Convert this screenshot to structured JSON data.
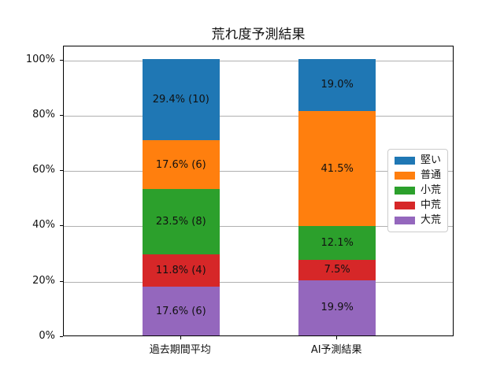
{
  "figure": {
    "background": "#ffffff",
    "text_color": "#111111",
    "grid_color": "#b0b0b0"
  },
  "chart_data": {
    "type": "bar",
    "variant": "stacked-100-percent-vertical",
    "title": "荒れ度予測結果",
    "categories": [
      "過去期間平均",
      "AI予測結果"
    ],
    "xlabel": "",
    "ylabel": "",
    "yticks": [
      "0%",
      "20%",
      "40%",
      "60%",
      "80%",
      "100%"
    ],
    "ylim": [
      0,
      105
    ],
    "grid": true,
    "legend_position": "right-inside",
    "series": [
      {
        "name": "堅い",
        "color": "#1f77b4",
        "values": [
          29.4,
          19.0
        ],
        "labels": [
          "29.4% (10)",
          "19.0%"
        ]
      },
      {
        "name": "普通",
        "color": "#ff7f0e",
        "values": [
          17.6,
          41.5
        ],
        "labels": [
          "17.6% (6)",
          "41.5%"
        ]
      },
      {
        "name": "小荒",
        "color": "#2ca02c",
        "values": [
          23.5,
          12.1
        ],
        "labels": [
          "23.5% (8)",
          "12.1%"
        ]
      },
      {
        "name": "中荒",
        "color": "#d62728",
        "values": [
          11.8,
          7.5
        ],
        "labels": [
          "11.8% (4)",
          "7.5%"
        ]
      },
      {
        "name": "大荒",
        "color": "#9467bd",
        "values": [
          17.6,
          19.9
        ],
        "labels": [
          "17.6% (6)",
          "19.9%"
        ]
      }
    ]
  }
}
